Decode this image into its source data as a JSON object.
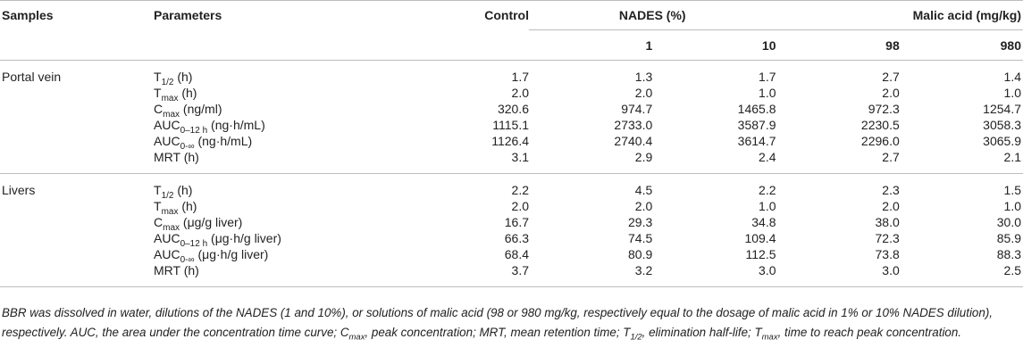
{
  "header": {
    "samples": "Samples",
    "parameters": "Parameters",
    "control": "Control",
    "nades_group": "NADES (%)",
    "malic_group": "Malic acid (mg/kg)",
    "nades_1": "1",
    "nades_10": "10",
    "malic_98": "98",
    "malic_980": "980"
  },
  "groups": [
    {
      "sample": "Portal vein",
      "rows": [
        {
          "pre": "T",
          "sub": "1/2",
          "post": " (h)",
          "values": [
            "1.7",
            "1.3",
            "1.7",
            "2.7",
            "1.4"
          ]
        },
        {
          "pre": "T",
          "sub": "max",
          "post": " (h)",
          "values": [
            "2.0",
            "2.0",
            "1.0",
            "2.0",
            "1.0"
          ]
        },
        {
          "pre": "C",
          "sub": "max",
          "post": " (ng/ml)",
          "values": [
            "320.6",
            "974.7",
            "1465.8",
            "972.3",
            "1254.7"
          ]
        },
        {
          "pre": "AUC",
          "sub": "0–12 h",
          "post": " (ng·h/mL)",
          "values": [
            "1115.1",
            "2733.0",
            "3587.9",
            "2230.5",
            "3058.3"
          ]
        },
        {
          "pre": "AUC",
          "sub": "0-∞",
          "post": " (ng·h/mL)",
          "values": [
            "1126.4",
            "2740.4",
            "3614.7",
            "2296.0",
            "3065.9"
          ]
        },
        {
          "pre": "MRT (h)",
          "sub": "",
          "post": "",
          "values": [
            "3.1",
            "2.9",
            "2.4",
            "2.7",
            "2.1"
          ]
        }
      ]
    },
    {
      "sample": "Livers",
      "rows": [
        {
          "pre": "T",
          "sub": "1/2",
          "post": " (h)",
          "values": [
            "2.2",
            "4.5",
            "2.2",
            "2.3",
            "1.5"
          ]
        },
        {
          "pre": "T",
          "sub": "max",
          "post": " (h)",
          "values": [
            "2.0",
            "2.0",
            "1.0",
            "2.0",
            "1.0"
          ]
        },
        {
          "pre": "C",
          "sub": "max",
          "post": " (μg/g liver)",
          "values": [
            "16.7",
            "29.3",
            "34.8",
            "38.0",
            "30.0"
          ]
        },
        {
          "pre": "AUC",
          "sub": "0–12 h",
          "post": " (μg·h/g liver)",
          "values": [
            "66.3",
            "74.5",
            "109.4",
            "72.3",
            "85.9"
          ]
        },
        {
          "pre": "AUC",
          "sub": "0-∞",
          "post": " (μg·h/g liver)",
          "values": [
            "68.4",
            "80.9",
            "112.5",
            "73.8",
            "88.3"
          ]
        },
        {
          "pre": "MRT (h)",
          "sub": "",
          "post": "",
          "values": [
            "3.7",
            "3.2",
            "3.0",
            "3.0",
            "2.5"
          ]
        }
      ]
    }
  ],
  "footnote": {
    "line1": "BBR was dissolved in water, dilutions of the NADES (1 and 10%), or solutions of malic acid (98 or 980 mg/kg, respectively equal to the dosage of malic acid in 1% or 10% NADES dilution),",
    "line2": "respectively. AUC, the area under the concentration time curve; C",
    "sub1": "max",
    "line2b": ", peak concentration; MRT, mean retention time; T",
    "sub2": "1/2",
    "line2c": ", elimination half-life; T",
    "sub3": "max",
    "line2d": ", time to reach peak concentration."
  }
}
